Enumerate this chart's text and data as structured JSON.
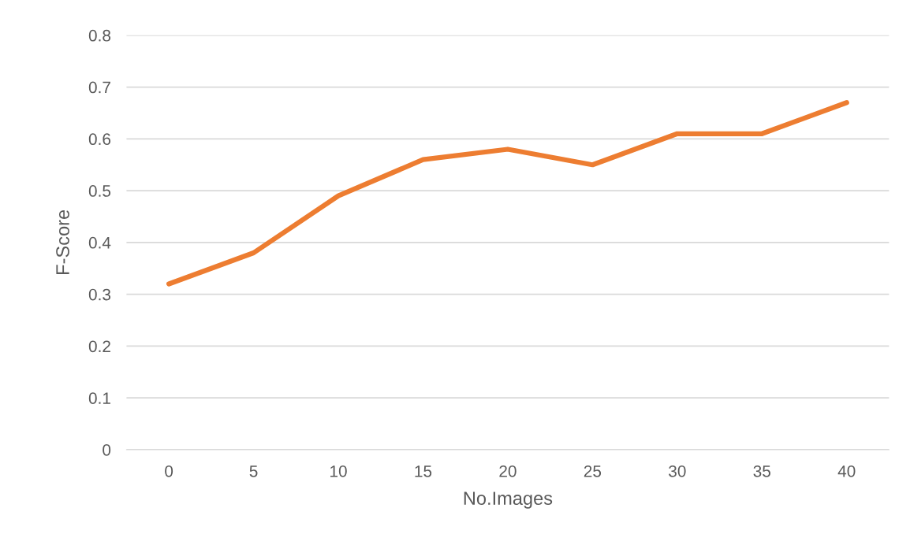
{
  "chart_data": {
    "type": "line",
    "xlabel": "No.Images",
    "ylabel": "F-Score",
    "categories": [
      "0",
      "5",
      "10",
      "15",
      "20",
      "25",
      "30",
      "35",
      "40"
    ],
    "series": [
      {
        "color": "#ed7d31",
        "values": [
          0.32,
          0.38,
          0.49,
          0.56,
          0.58,
          0.55,
          0.61,
          0.61,
          0.67
        ]
      }
    ],
    "ylim": [
      0,
      0.8
    ],
    "yticks": [
      0,
      0.1,
      0.2,
      0.3,
      0.4,
      0.5,
      0.6,
      0.7,
      0.8
    ],
    "grid": "y",
    "marker": "none",
    "line_style": "solid"
  }
}
